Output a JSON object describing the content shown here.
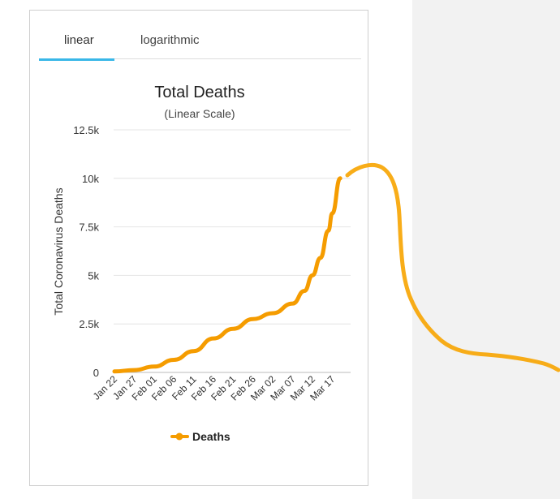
{
  "tabs": {
    "linear_label": "linear",
    "log_label": "logarithmic",
    "active": "linear"
  },
  "chart_data": {
    "type": "line",
    "title": "Total Deaths",
    "subtitle": "(Linear Scale)",
    "ylabel": "Total Coronavirus Deaths",
    "xlabel": "",
    "ylim": [
      0,
      12500
    ],
    "y_ticks": [
      0,
      2500,
      5000,
      7500,
      10000,
      12500
    ],
    "y_tick_labels": [
      "0",
      "2.5k",
      "5k",
      "7.5k",
      "10k",
      "12.5k"
    ],
    "x_tick_labels": [
      "Jan 22",
      "Jan 27",
      "Feb 01",
      "Feb 06",
      "Feb 11",
      "Feb 16",
      "Feb 21",
      "Feb 26",
      "Mar 02",
      "Mar 07",
      "Mar 12",
      "Mar 17"
    ],
    "grid": true,
    "legend_position": "bottom",
    "series": [
      {
        "name": "Deaths",
        "color": "#f59c00",
        "x": [
          "Jan 22",
          "Jan 27",
          "Feb 01",
          "Feb 06",
          "Feb 11",
          "Feb 16",
          "Feb 21",
          "Feb 26",
          "Mar 02",
          "Mar 07",
          "Mar 10",
          "Mar 12",
          "Mar 14",
          "Mar 16",
          "Mar 17",
          "Mar 19"
        ],
        "values": [
          50,
          120,
          300,
          650,
          1100,
          1750,
          2250,
          2750,
          3050,
          3550,
          4200,
          5000,
          5900,
          7300,
          8200,
          10000
        ]
      }
    ]
  },
  "annotation": {
    "color": "#f7a400"
  }
}
